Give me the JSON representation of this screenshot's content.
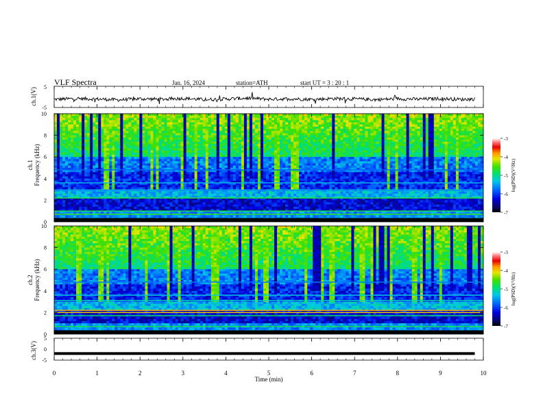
{
  "header": {
    "title": "VLF  Spectra",
    "date": "Jan. 16, 2024",
    "station": "station=ATH",
    "start": "start  UT  =   3  : 20 : 1"
  },
  "colorbar": {
    "label": "log(PSD)(V²/Hz)",
    "ticks": [
      "-3",
      "-4",
      "-5",
      "-6",
      "-7"
    ]
  },
  "chart_data": [
    {
      "type": "line",
      "panel": "ch1-waveform",
      "ylabel": "ch.1(V)",
      "ylim": [
        -5,
        5
      ],
      "ytick_labels": [
        "5",
        "-5"
      ],
      "xlim": [
        0,
        10
      ],
      "x": [
        0,
        0.5,
        1,
        1.5,
        2,
        2.5,
        3,
        3.5,
        4,
        4.5,
        5,
        5.5,
        6,
        6.5,
        7,
        7.5,
        8,
        8.5,
        9,
        9.5,
        9.8
      ],
      "y": [
        -1.2,
        -0.8,
        -1.0,
        -1.4,
        -0.9,
        -1.1,
        -0.7,
        -1.3,
        -1.0,
        -0.6,
        -1.1,
        -0.9,
        -1.2,
        -0.8,
        -1.0,
        -1.3,
        -0.9,
        -1.1,
        -0.8,
        -1.2,
        -1.0
      ]
    },
    {
      "type": "heatmap",
      "panel": "ch1-spectrogram",
      "ylabel": "ch.1\nFrequency (kHz)",
      "ylim": [
        0,
        10
      ],
      "ytick_labels": [
        "0",
        "2",
        "4",
        "6",
        "8",
        "10"
      ],
      "xlim": [
        0,
        10
      ],
      "color_scale": "log(PSD)(V²/Hz)",
      "clim": [
        -7,
        -3
      ],
      "bands": [
        {
          "f_khz": 0.7,
          "level": -4.6
        },
        {
          "f_khz": 1.0,
          "level": -4.8
        },
        {
          "f_khz": 2.2,
          "level": -4.7
        },
        {
          "f_khz": 2.9,
          "level": -5.6
        },
        {
          "f_khz": 3.6,
          "level": -5.4
        },
        {
          "f_khz": 4.8,
          "level": -5.8
        }
      ]
    },
    {
      "type": "heatmap",
      "panel": "ch2-spectrogram",
      "ylabel": "ch.2\nFrequency (kHz)",
      "ylim": [
        0,
        10
      ],
      "ytick_labels": [
        "0",
        "2",
        "4",
        "6",
        "8",
        "10"
      ],
      "xlim": [
        0,
        10
      ],
      "color_scale": "log(PSD)(V²/Hz)",
      "clim": [
        -7,
        -3
      ],
      "bands": [
        {
          "f_khz": 0.7,
          "level": -4.8
        },
        {
          "f_khz": 1.7,
          "level": -4.9
        },
        {
          "f_khz": 2.0,
          "level": -4.0
        },
        {
          "f_khz": 2.2,
          "level": -3.9
        },
        {
          "f_khz": 3.1,
          "level": -5.2
        },
        {
          "f_khz": 3.6,
          "level": -5.3
        },
        {
          "f_khz": 4.8,
          "level": -5.7
        }
      ]
    },
    {
      "type": "line",
      "panel": "ch3-waveform",
      "ylabel": "ch.3(V)",
      "ylim": [
        -5,
        5
      ],
      "ytick_labels": [
        "5",
        "0",
        "-5"
      ],
      "xlim": [
        0,
        10
      ],
      "xlabel": "Time  (min)",
      "xtick_labels": [
        "0",
        "1",
        "2",
        "3",
        "4",
        "5",
        "6",
        "7",
        "8",
        "9",
        "10"
      ],
      "x": [
        0,
        9.8
      ],
      "y": [
        -2,
        -2
      ]
    }
  ]
}
